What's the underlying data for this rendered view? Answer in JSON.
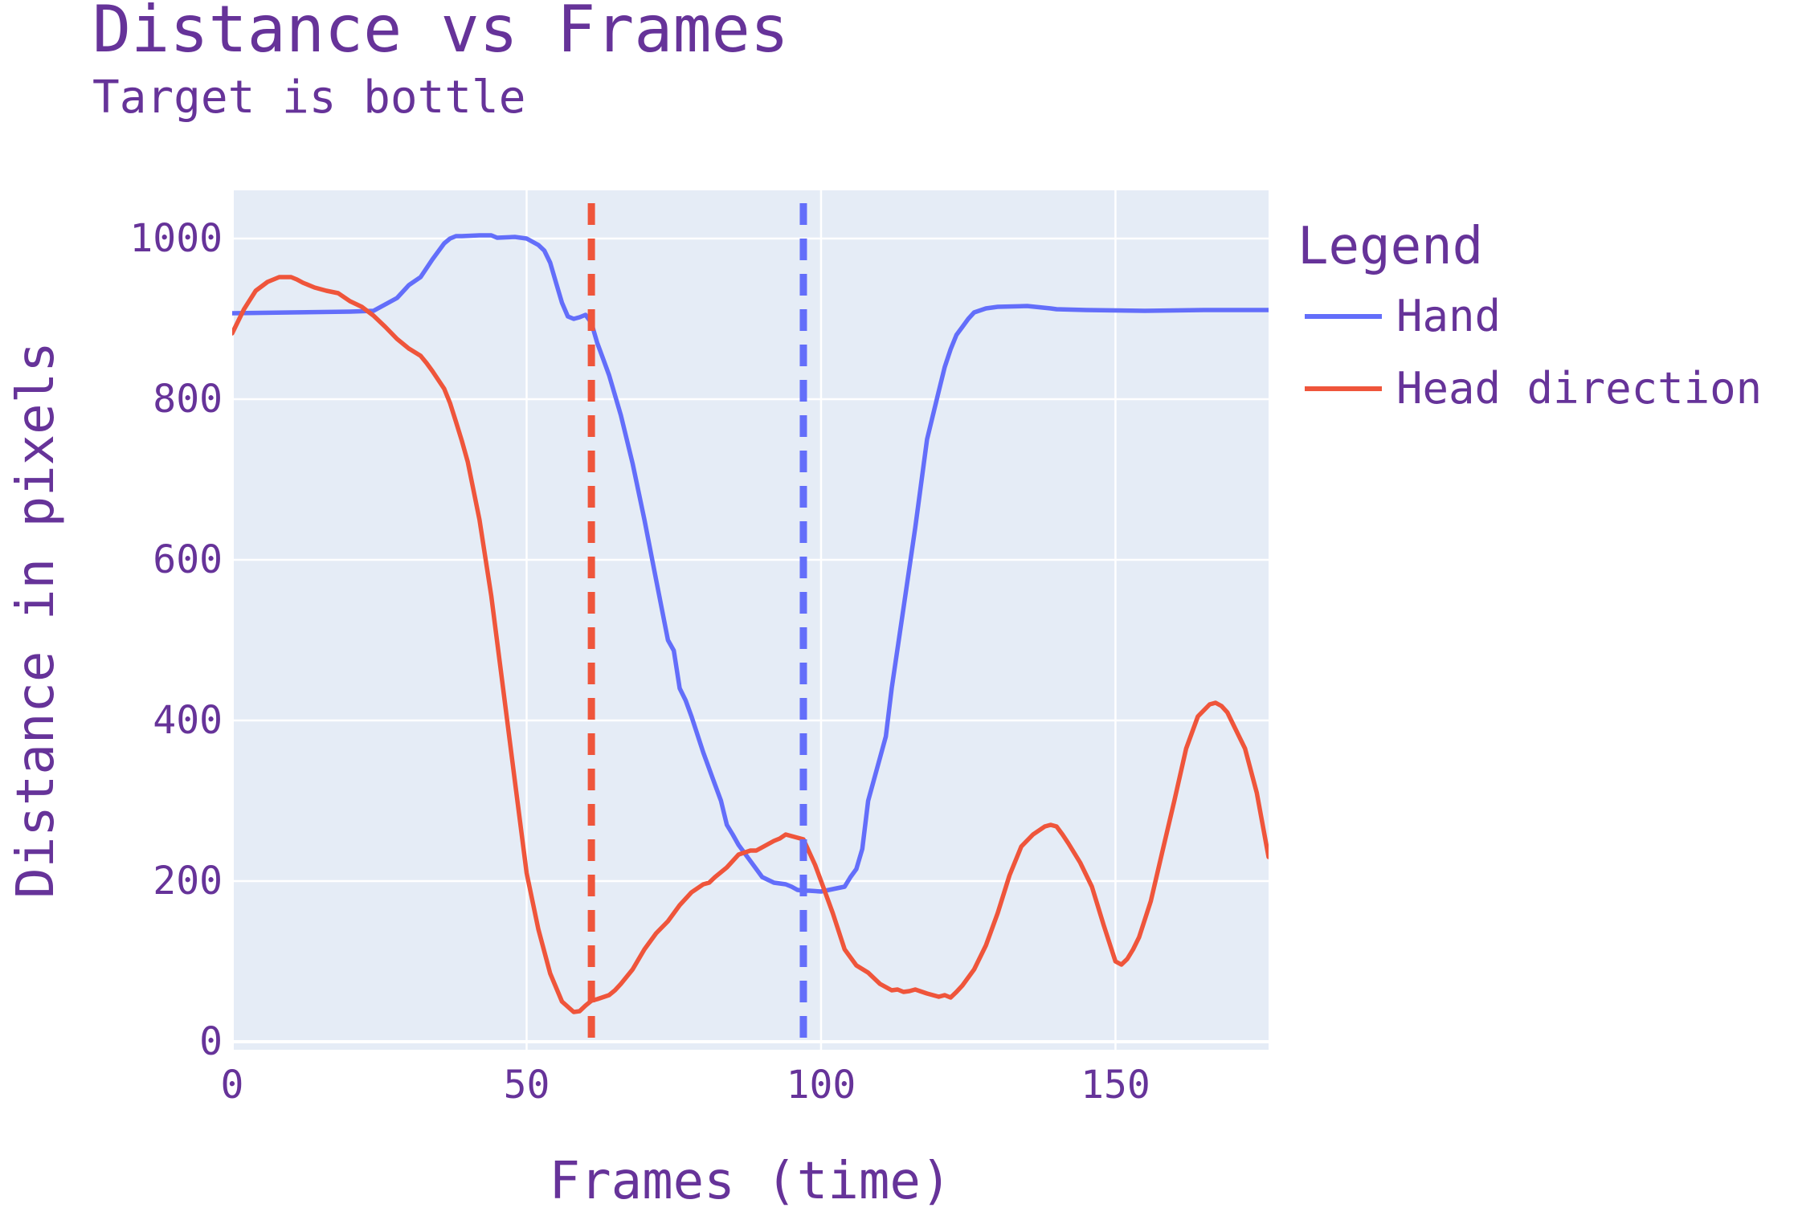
{
  "chart_data": {
    "type": "line",
    "title": "Distance vs Frames",
    "subtitle": "Target is bottle",
    "xlabel": "Frames (time)",
    "ylabel": "Distance in pixels",
    "xlim": [
      0,
      176
    ],
    "ylim": [
      -10,
      1060
    ],
    "xticks": [
      0,
      50,
      100,
      150
    ],
    "yticks": [
      0,
      200,
      400,
      600,
      800,
      1000
    ],
    "grid": true,
    "plot_bgcolor": "#E5ECF6",
    "legend": {
      "title": "Legend",
      "placement": "right"
    },
    "series": [
      {
        "name": "Hand",
        "color": "#636EFA",
        "x": [
          0,
          10,
          20,
          24,
          28,
          30,
          32,
          34,
          36,
          37,
          38,
          39,
          42,
          44,
          45,
          48,
          50,
          52,
          53,
          54,
          55,
          56,
          57,
          58,
          59,
          60,
          61,
          62,
          63,
          64,
          66,
          68,
          70,
          72,
          74,
          75,
          76,
          77,
          78,
          80,
          82,
          83,
          84,
          85,
          86,
          88,
          90,
          92,
          94,
          95,
          96,
          97,
          98,
          100,
          102,
          104,
          105,
          106,
          107,
          108,
          111,
          112,
          114,
          116,
          118,
          120,
          121,
          122,
          123,
          124,
          125,
          126,
          128,
          130,
          135,
          139,
          140,
          145,
          155,
          165,
          176
        ],
        "y": [
          907,
          908,
          909,
          910,
          926,
          942,
          952,
          974,
          994,
          1000,
          1003,
          1003,
          1004,
          1004,
          1001,
          1002,
          1000,
          992,
          985,
          970,
          945,
          920,
          903,
          900,
          902,
          905,
          895,
          870,
          850,
          830,
          780,
          720,
          650,
          575,
          500,
          487,
          440,
          425,
          405,
          360,
          320,
          300,
          270,
          258,
          245,
          225,
          205,
          198,
          196,
          193,
          189,
          188,
          188,
          187,
          190,
          193,
          205,
          215,
          240,
          300,
          380,
          440,
          540,
          640,
          750,
          810,
          840,
          862,
          880,
          890,
          900,
          908,
          913,
          915,
          916,
          913,
          912,
          911,
          910,
          911,
          911
        ]
      },
      {
        "name": "Head direction",
        "color": "#EF553B",
        "x": [
          0,
          2,
          4,
          6,
          8,
          10,
          11,
          12,
          14,
          16,
          18,
          20,
          22,
          24,
          26,
          28,
          30,
          32,
          33,
          34,
          36,
          37,
          38,
          39,
          40,
          42,
          44,
          46,
          48,
          50,
          52,
          54,
          56,
          58,
          59,
          60,
          61,
          62,
          64,
          65,
          66,
          68,
          70,
          72,
          74,
          75,
          76,
          78,
          80,
          81,
          82,
          84,
          86,
          88,
          89,
          90,
          91,
          92,
          93,
          94,
          95,
          96,
          97,
          98,
          99,
          100,
          102,
          104,
          106,
          108,
          110,
          112,
          113,
          114,
          115,
          116,
          118,
          120,
          121,
          122,
          123,
          124,
          126,
          128,
          130,
          132,
          134,
          136,
          138,
          139,
          140,
          141,
          142,
          144,
          146,
          148,
          150,
          151,
          152,
          153,
          154,
          156,
          158,
          160,
          162,
          164,
          166,
          167,
          168,
          169,
          170,
          172,
          174,
          176
        ],
        "y": [
          882,
          912,
          935,
          946,
          952,
          952,
          949,
          945,
          939,
          935,
          932,
          922,
          915,
          904,
          890,
          875,
          863,
          854,
          845,
          835,
          813,
          795,
          772,
          748,
          722,
          650,
          555,
          440,
          325,
          210,
          140,
          85,
          50,
          37,
          38,
          45,
          51,
          53,
          58,
          64,
          72,
          90,
          115,
          135,
          150,
          160,
          170,
          186,
          196,
          198,
          205,
          217,
          233,
          238,
          238,
          242,
          246,
          250,
          253,
          258,
          256,
          254,
          252,
          236,
          220,
          200,
          160,
          115,
          95,
          86,
          72,
          64,
          65,
          62,
          63,
          65,
          60,
          56,
          58,
          55,
          62,
          70,
          90,
          120,
          160,
          207,
          243,
          258,
          268,
          270,
          268,
          258,
          247,
          223,
          193,
          145,
          100,
          96,
          103,
          115,
          130,
          175,
          238,
          300,
          365,
          405,
          420,
          422,
          418,
          410,
          395,
          365,
          310,
          230
        ]
      }
    ],
    "vlines": [
      {
        "x": 61,
        "color": "#EF553B",
        "dash": true
      },
      {
        "x": 97,
        "color": "#636EFA",
        "dash": true
      }
    ]
  }
}
